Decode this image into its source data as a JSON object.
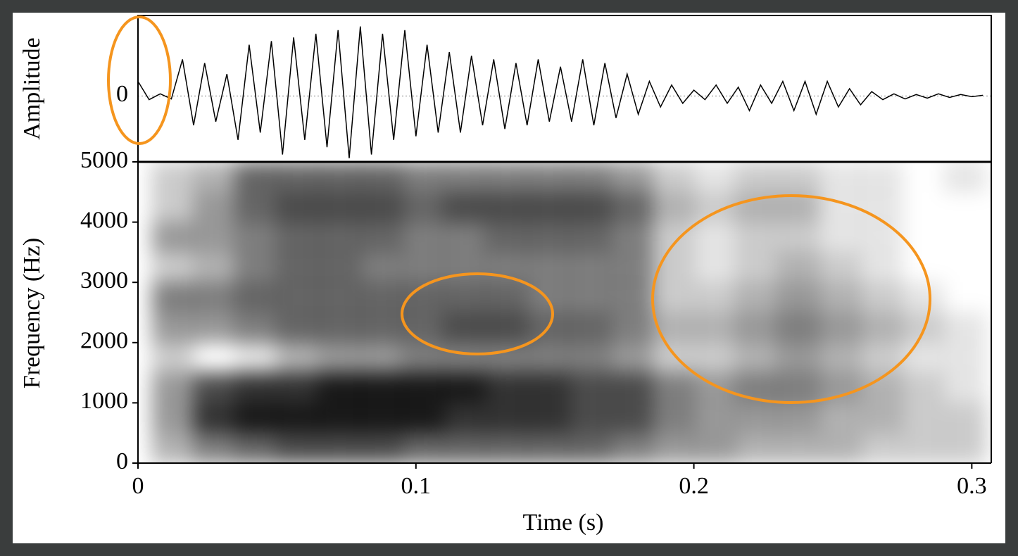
{
  "chart_data": [
    {
      "type": "line",
      "ylabel": "Amplitude",
      "color": "#000000",
      "xlim": [
        0,
        0.307
      ],
      "ylim": [
        -0.9,
        1.1
      ],
      "yticks": [
        0
      ],
      "x": [
        0,
        0.004,
        0.008,
        0.012,
        0.016,
        0.02,
        0.024,
        0.028,
        0.032,
        0.036,
        0.04,
        0.044,
        0.048,
        0.052,
        0.056,
        0.06,
        0.064,
        0.068,
        0.072,
        0.076,
        0.08,
        0.084,
        0.088,
        0.092,
        0.096,
        0.1,
        0.104,
        0.108,
        0.112,
        0.116,
        0.12,
        0.124,
        0.128,
        0.132,
        0.136,
        0.14,
        0.144,
        0.148,
        0.152,
        0.156,
        0.16,
        0.164,
        0.168,
        0.172,
        0.176,
        0.18,
        0.184,
        0.188,
        0.192,
        0.196,
        0.2,
        0.204,
        0.208,
        0.212,
        0.216,
        0.22,
        0.224,
        0.228,
        0.232,
        0.236,
        0.24,
        0.244,
        0.248,
        0.252,
        0.256,
        0.26,
        0.264,
        0.268,
        0.272,
        0.276,
        0.28,
        0.284,
        0.288,
        0.292,
        0.296,
        0.3,
        0.304
      ],
      "values": [
        0.2,
        -0.05,
        0.03,
        -0.04,
        0.5,
        -0.4,
        0.45,
        -0.35,
        0.3,
        -0.6,
        0.7,
        -0.5,
        0.75,
        -0.8,
        0.8,
        -0.6,
        0.85,
        -0.7,
        0.9,
        -0.85,
        0.95,
        -0.8,
        0.85,
        -0.6,
        0.9,
        -0.55,
        0.7,
        -0.5,
        0.6,
        -0.5,
        0.55,
        -0.4,
        0.5,
        -0.45,
        0.45,
        -0.4,
        0.5,
        -0.35,
        0.4,
        -0.35,
        0.5,
        -0.4,
        0.45,
        -0.3,
        0.3,
        -0.25,
        0.2,
        -0.15,
        0.15,
        -0.1,
        0.08,
        -0.05,
        0.15,
        -0.1,
        0.12,
        -0.2,
        0.15,
        -0.1,
        0.2,
        -0.2,
        0.2,
        -0.25,
        0.2,
        -0.15,
        0.1,
        -0.12,
        0.06,
        -0.05,
        0.03,
        -0.04,
        0.02,
        -0.03,
        0.03,
        -0.02,
        0.02,
        -0.01,
        0.01
      ]
    },
    {
      "type": "heatmap",
      "xlabel": "Time (s)",
      "ylabel": "Frequency (Hz)",
      "color": "#000000",
      "xlim": [
        0,
        0.307
      ],
      "ylim": [
        0,
        5000
      ],
      "xticks": [
        0,
        0.1,
        0.2,
        0.3
      ],
      "yticks": [
        0,
        1000,
        2000,
        3000,
        4000,
        5000
      ],
      "x": [
        0.0125,
        0.0275,
        0.0425,
        0.0575,
        0.0725,
        0.0875,
        0.1025,
        0.1175,
        0.1325,
        0.1475,
        0.1625,
        0.1775,
        0.1925,
        0.2075,
        0.2225,
        0.2375,
        0.2525,
        0.2675,
        0.2825,
        0.2975
      ],
      "y": [
        250,
        750,
        1250,
        1750,
        2250,
        2750,
        3250,
        3750,
        4250,
        4750
      ],
      "z": [
        [
          0.3,
          0.5,
          0.6,
          0.7,
          0.7,
          0.7,
          0.6,
          0.6,
          0.6,
          0.6,
          0.6,
          0.5,
          0.4,
          0.4,
          0.3,
          0.3,
          0.3,
          0.2,
          0.2,
          0.2
        ],
        [
          0.4,
          0.8,
          0.9,
          0.9,
          0.9,
          0.9,
          0.9,
          0.8,
          0.8,
          0.8,
          0.7,
          0.7,
          0.5,
          0.4,
          0.4,
          0.4,
          0.3,
          0.3,
          0.2,
          0.2
        ],
        [
          0.4,
          0.7,
          0.8,
          0.8,
          0.9,
          0.9,
          0.9,
          0.9,
          0.8,
          0.8,
          0.7,
          0.7,
          0.5,
          0.4,
          0.5,
          0.5,
          0.4,
          0.3,
          0.2,
          0.1
        ],
        [
          0.2,
          0.0,
          0.1,
          0.3,
          0.4,
          0.4,
          0.5,
          0.5,
          0.5,
          0.5,
          0.5,
          0.4,
          0.2,
          0.2,
          0.3,
          0.4,
          0.3,
          0.2,
          0.1,
          0.1
        ],
        [
          0.4,
          0.4,
          0.5,
          0.6,
          0.6,
          0.6,
          0.6,
          0.7,
          0.7,
          0.6,
          0.6,
          0.5,
          0.3,
          0.3,
          0.4,
          0.5,
          0.4,
          0.3,
          0.2,
          0.1
        ],
        [
          0.5,
          0.5,
          0.6,
          0.6,
          0.6,
          0.6,
          0.6,
          0.6,
          0.6,
          0.5,
          0.5,
          0.5,
          0.2,
          0.2,
          0.3,
          0.4,
          0.3,
          0.2,
          0.1,
          0.0
        ],
        [
          0.2,
          0.3,
          0.5,
          0.6,
          0.6,
          0.5,
          0.5,
          0.5,
          0.5,
          0.5,
          0.5,
          0.5,
          0.2,
          0.1,
          0.2,
          0.3,
          0.2,
          0.1,
          0.0,
          0.0
        ],
        [
          0.4,
          0.4,
          0.5,
          0.6,
          0.6,
          0.6,
          0.5,
          0.5,
          0.6,
          0.6,
          0.6,
          0.5,
          0.2,
          0.1,
          0.2,
          0.2,
          0.1,
          0.1,
          0.0,
          0.0
        ],
        [
          0.2,
          0.4,
          0.6,
          0.7,
          0.7,
          0.7,
          0.6,
          0.7,
          0.7,
          0.7,
          0.7,
          0.6,
          0.3,
          0.2,
          0.3,
          0.3,
          0.1,
          0.1,
          0.0,
          0.0
        ],
        [
          0.2,
          0.3,
          0.6,
          0.6,
          0.6,
          0.6,
          0.5,
          0.5,
          0.5,
          0.5,
          0.5,
          0.4,
          0.2,
          0.1,
          0.2,
          0.2,
          0.1,
          0.1,
          0.0,
          0.1
        ]
      ]
    }
  ]
}
